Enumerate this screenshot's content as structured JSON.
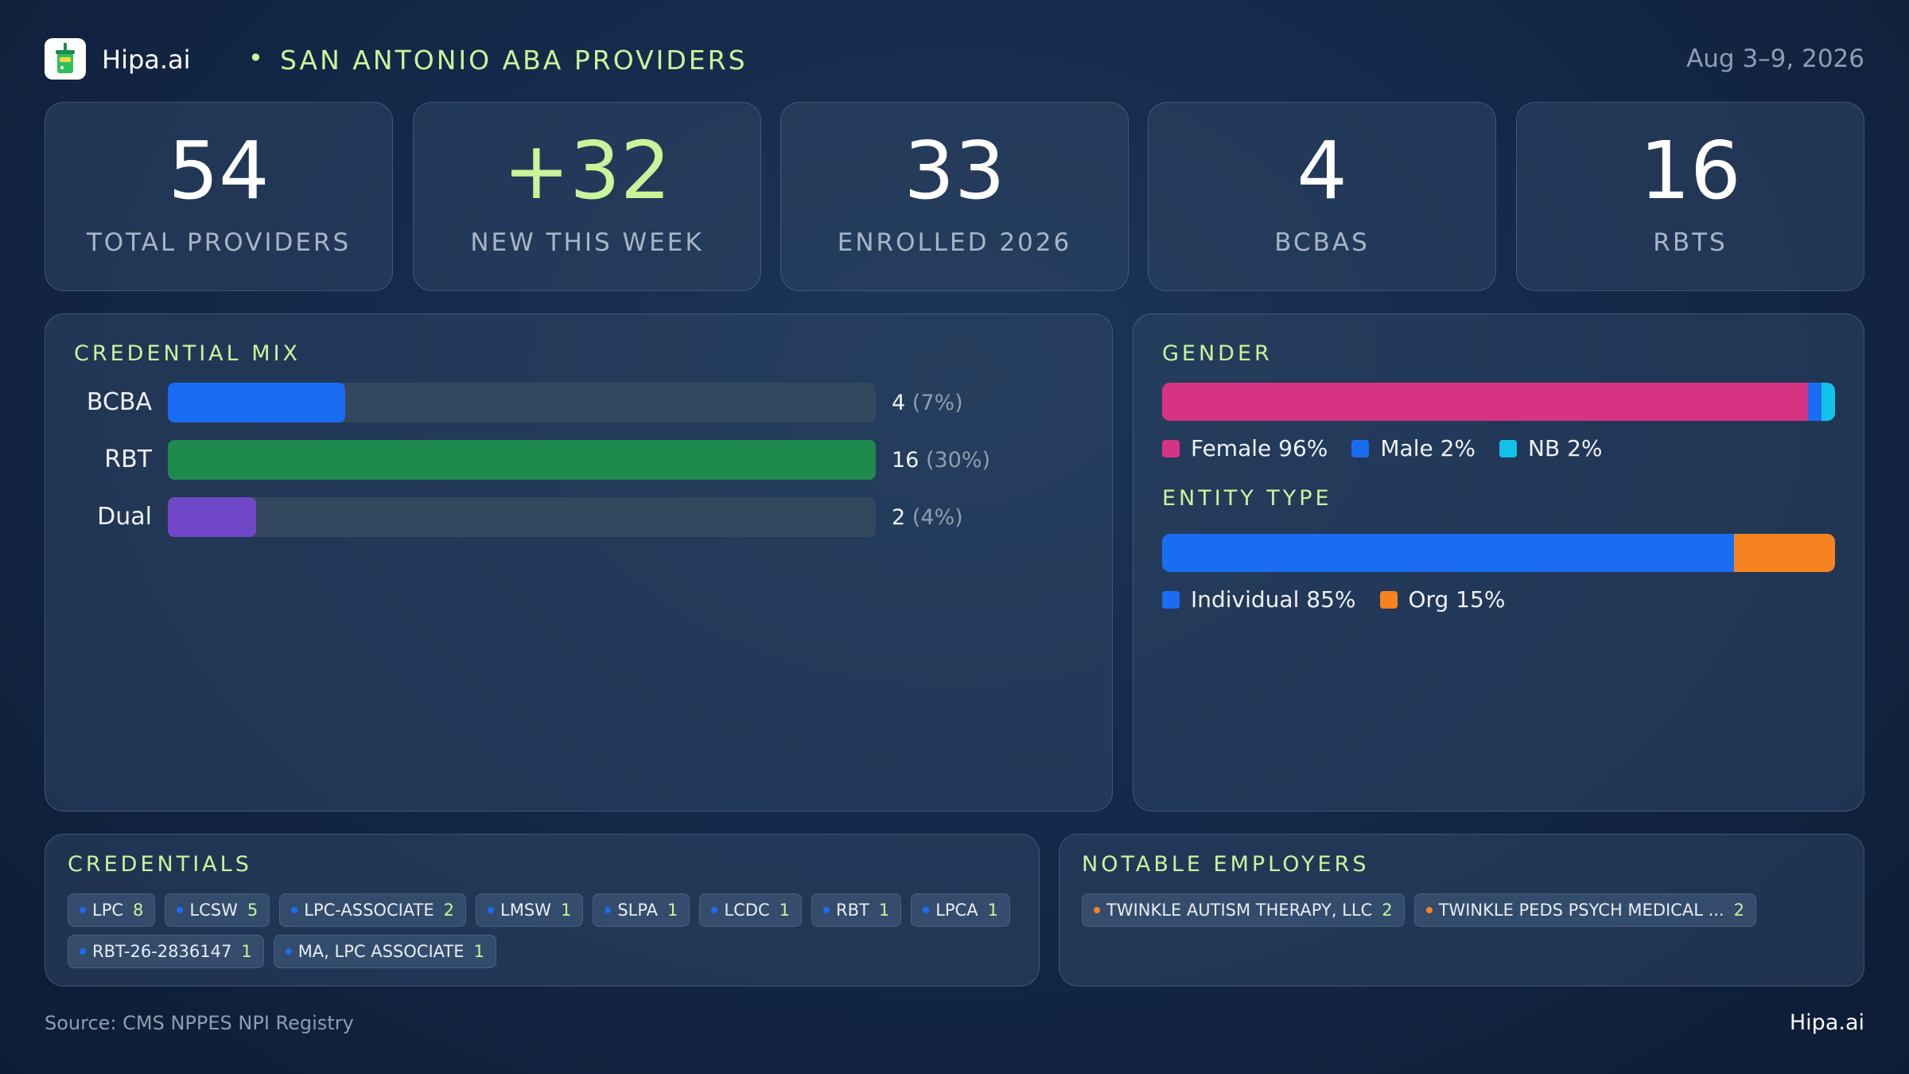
{
  "header": {
    "brand": "Hipa.ai",
    "separator": "•",
    "title": "SAN ANTONIO ABA PROVIDERS",
    "date_range": "Aug 3–9, 2026"
  },
  "stats": [
    {
      "value": "54",
      "label": "TOTAL PROVIDERS"
    },
    {
      "value": "+32",
      "label": "NEW THIS WEEK"
    },
    {
      "value": "33",
      "label": "ENROLLED 2026"
    },
    {
      "value": "4",
      "label": "BCBAS"
    },
    {
      "value": "16",
      "label": "RBTS"
    }
  ],
  "credential_mix": {
    "title": "CREDENTIAL MIX",
    "rows": [
      {
        "label": "BCBA",
        "count": "4",
        "pct": "(7%)",
        "fraction": 0.25,
        "color": "#1a6df2"
      },
      {
        "label": "RBT",
        "count": "16",
        "pct": "(30%)",
        "fraction": 1.0,
        "color": "#1e8a4e"
      },
      {
        "label": "Dual",
        "count": "2",
        "pct": "(4%)",
        "fraction": 0.125,
        "color": "#7047c6"
      }
    ]
  },
  "gender": {
    "title": "GENDER",
    "segments": [
      {
        "label": "Female 96%",
        "percent": 96,
        "color": "#d63384"
      },
      {
        "label": "Male 2%",
        "percent": 2,
        "color": "#1a6df2"
      },
      {
        "label": "NB 2%",
        "percent": 2,
        "color": "#13c2e8"
      }
    ]
  },
  "entity_type": {
    "title": "ENTITY TYPE",
    "segments": [
      {
        "label": "Individual 85%",
        "percent": 85,
        "color": "#1a6df2"
      },
      {
        "label": "Org 15%",
        "percent": 15,
        "color": "#f5831f"
      }
    ]
  },
  "credentials": {
    "title": "CREDENTIALS",
    "dot_color": "#1a6df2",
    "items": [
      {
        "name": "LPC",
        "count": "8"
      },
      {
        "name": "LCSW",
        "count": "5"
      },
      {
        "name": "LPC-ASSOCIATE",
        "count": "2"
      },
      {
        "name": "LMSW",
        "count": "1"
      },
      {
        "name": "SLPA",
        "count": "1"
      },
      {
        "name": "LCDC",
        "count": "1"
      },
      {
        "name": "RBT",
        "count": "1"
      },
      {
        "name": "LPCA",
        "count": "1"
      },
      {
        "name": "RBT-26-2836147",
        "count": "1"
      },
      {
        "name": "MA, LPC ASSOCIATE",
        "count": "1"
      }
    ]
  },
  "employers": {
    "title": "NOTABLE EMPLOYERS",
    "dot_color": "#f5831f",
    "items": [
      {
        "name": "TWINKLE AUTISM THERAPY, LLC",
        "count": "2"
      },
      {
        "name": "TWINKLE PEDS PSYCH MEDICAL ...",
        "count": "2"
      }
    ]
  },
  "footer": {
    "source": "Source: CMS NPPES NPI Registry",
    "brand": "Hipa.ai"
  }
}
